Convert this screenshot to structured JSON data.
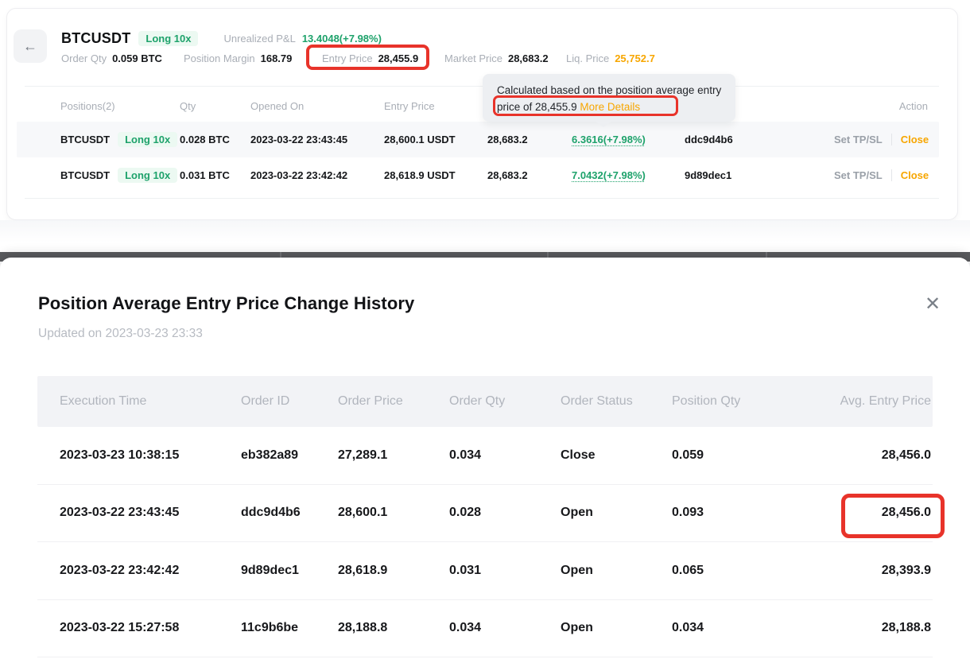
{
  "colors": {
    "green": "#1ea26b",
    "green_badge_bg": "#ecf9f2",
    "orange": "#f7a600",
    "annotation_red": "#e8332a",
    "label_gray": "#a9aeb6",
    "tooltip_bg": "#edeff2",
    "overlay_dark": "#5a5b5e"
  },
  "icons": {
    "back": "←",
    "close": "✕"
  },
  "position_header": {
    "symbol": "BTCUSDT",
    "side_badge": "Long 10x",
    "unrealized_pnl_label": "Unrealized P&L",
    "unrealized_pnl_value": "13.4048(+7.98%)",
    "stats": [
      {
        "label": "Order Qty",
        "value": "0.059 BTC"
      },
      {
        "label": "Position Margin",
        "value": "168.79"
      },
      {
        "label": "Entry Price",
        "value": "28,455.9"
      },
      {
        "label": "Market Price",
        "value": "28,683.2"
      },
      {
        "label": "Liq. Price",
        "value": "25,752.7"
      }
    ]
  },
  "tooltip": {
    "line1": "Calculated based on the position average entry",
    "line2_text": "price of 28,455.9",
    "link_label": "More Details"
  },
  "positions_table": {
    "headers": [
      "Positions(2)",
      "Qty",
      "Opened On",
      "Entry Price",
      "",
      "",
      "",
      "Action"
    ],
    "rows": [
      {
        "symbol": "BTCUSDT",
        "badge": "Long 10x",
        "qty": "0.028 BTC",
        "opened_on": "2023-03-22 23:43:45",
        "entry_price": "28,600.1 USDT",
        "market_price": "28,683.2",
        "pnl": "6.3616(+7.98%)",
        "order_id": "ddc9d4b6",
        "set_tpsl": "Set TP/SL",
        "close": "Close"
      },
      {
        "symbol": "BTCUSDT",
        "badge": "Long 10x",
        "qty": "0.031 BTC",
        "opened_on": "2023-03-22 23:42:42",
        "entry_price": "28,618.9 USDT",
        "market_price": "28,683.2",
        "pnl": "7.0432(+7.98%)",
        "order_id": "9d89dec1",
        "set_tpsl": "Set TP/SL",
        "close": "Close"
      }
    ]
  },
  "modal": {
    "title": "Position Average Entry Price Change History",
    "subtitle": "Updated on 2023-03-23 23:33",
    "table": {
      "headers": [
        "Execution Time",
        "Order ID",
        "Order Price",
        "Order Qty",
        "Order Status",
        "Position Qty",
        "Avg. Entry Price"
      ],
      "rows": [
        [
          "2023-03-23 10:38:15",
          "eb382a89",
          "27,289.1",
          "0.034",
          "Close",
          "0.059",
          "28,456.0"
        ],
        [
          "2023-03-22 23:43:45",
          "ddc9d4b6",
          "28,600.1",
          "0.028",
          "Open",
          "0.093",
          "28,456.0"
        ],
        [
          "2023-03-22 23:42:42",
          "9d89dec1",
          "28,618.9",
          "0.031",
          "Open",
          "0.065",
          "28,393.9"
        ],
        [
          "2023-03-22 15:27:58",
          "11c9b6be",
          "28,188.8",
          "0.034",
          "Open",
          "0.034",
          "28,188.8"
        ]
      ]
    }
  }
}
